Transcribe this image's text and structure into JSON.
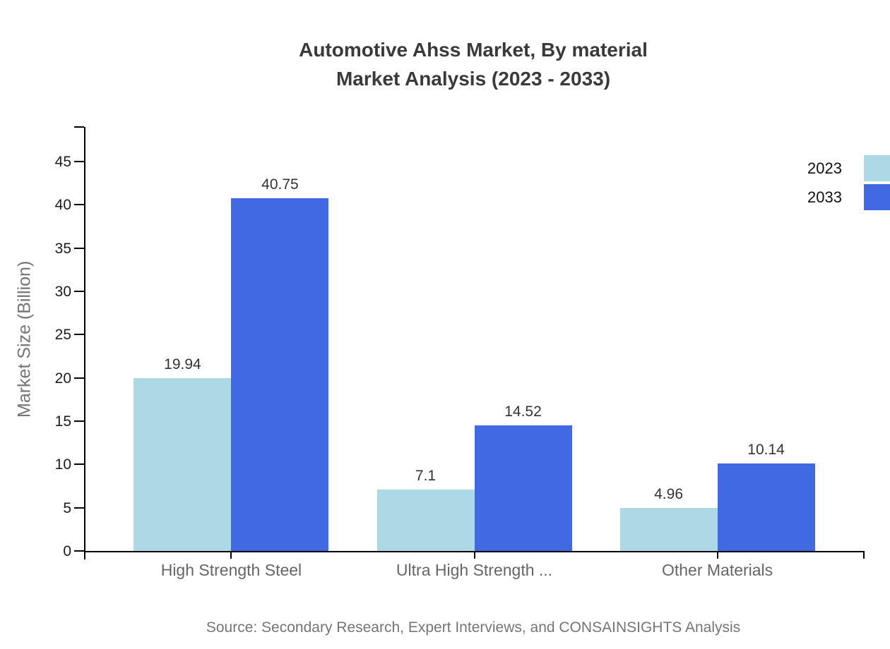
{
  "title": {
    "line1": "Automotive Ahss Market, By material",
    "line2": "Market Analysis (2023 - 2033)"
  },
  "source": "Source: Secondary Research, Expert Interviews, and CONSAINSIGHTS Analysis",
  "legend": {
    "items": [
      {
        "label": "2023",
        "color": "#ADD8E6"
      },
      {
        "label": "2033",
        "color": "#4169E1"
      }
    ]
  },
  "chart_data": {
    "type": "bar",
    "title": "Automotive Ahss Market, By material — Market Analysis (2023 - 2033)",
    "categories": [
      "High Strength Steel",
      "Ultra High Strength ...",
      "Other Materials"
    ],
    "series": [
      {
        "name": "2023",
        "color": "#ADD8E6",
        "values": [
          19.94,
          7.1,
          4.96
        ]
      },
      {
        "name": "2033",
        "color": "#4169E1",
        "values": [
          40.75,
          14.52,
          10.14
        ]
      }
    ],
    "value_labels": [
      "19.94",
      "40.75",
      "7.1",
      "14.52",
      "4.96",
      "10.14"
    ],
    "xlabel": "",
    "ylabel": "Market Size (Billion)",
    "ylim": [
      0,
      49
    ],
    "yticks": [
      0,
      5,
      10,
      15,
      20,
      25,
      30,
      35,
      40,
      45
    ],
    "grid": false,
    "legend_position": "top-right",
    "bar_value_labels": true
  }
}
